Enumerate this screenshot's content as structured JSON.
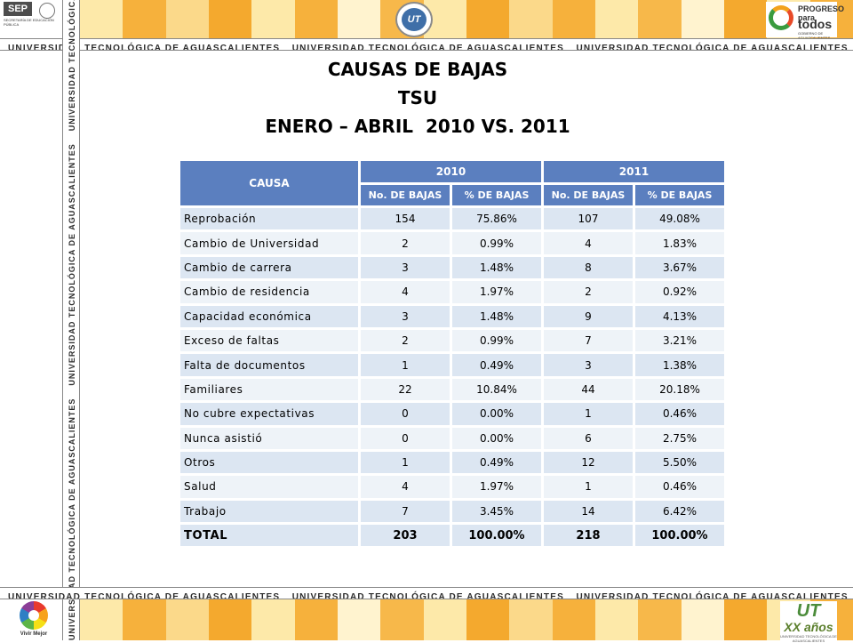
{
  "header": {
    "sep_logo": "SEP",
    "sep_subtitle": "SECRETARÍA DE EDUCACIÓN PÚBLICA",
    "university_banner": "UNIVERSIDAD TECNOLÓGICA DE AGUASCALIENTES",
    "seal_text": "UT",
    "progreso_line1": "PROGRESO para",
    "progreso_line2": "todos",
    "progreso_line3": "GOBIERNO DE AGUASCALIENTES"
  },
  "title": {
    "line1": "CAUSAS DE BAJAS",
    "line2": "TSU",
    "line3": "ENERO – ABRIL  2010 VS. 2011"
  },
  "table": {
    "cause_header": "CAUSA",
    "year_headers": [
      "2010",
      "2011"
    ],
    "sub_headers": [
      "No. DE BAJAS",
      "% DE BAJAS",
      "No. DE BAJAS",
      "% DE BAJAS"
    ],
    "rows": [
      {
        "cause": "Reprobación",
        "n2010": "154",
        "p2010": "75.86%",
        "n2011": "107",
        "p2011": "49.08%"
      },
      {
        "cause": "Cambio de Universidad",
        "n2010": "2",
        "p2010": "0.99%",
        "n2011": "4",
        "p2011": "1.83%"
      },
      {
        "cause": "Cambio de carrera",
        "n2010": "3",
        "p2010": "1.48%",
        "n2011": "8",
        "p2011": "3.67%"
      },
      {
        "cause": "Cambio de residencia",
        "n2010": "4",
        "p2010": "1.97%",
        "n2011": "2",
        "p2011": "0.92%"
      },
      {
        "cause": "Capacidad económica",
        "n2010": "3",
        "p2010": "1.48%",
        "n2011": "9",
        "p2011": "4.13%"
      },
      {
        "cause": "Exceso de faltas",
        "n2010": "2",
        "p2010": "0.99%",
        "n2011": "7",
        "p2011": "3.21%"
      },
      {
        "cause": "Falta de documentos",
        "n2010": "1",
        "p2010": "0.49%",
        "n2011": "3",
        "p2011": "1.38%"
      },
      {
        "cause": "Familiares",
        "n2010": "22",
        "p2010": "10.84%",
        "n2011": "44",
        "p2011": "20.18%"
      },
      {
        "cause": "No cubre expectativas",
        "n2010": "0",
        "p2010": "0.00%",
        "n2011": "1",
        "p2011": "0.46%"
      },
      {
        "cause": "Nunca asistió",
        "n2010": "0",
        "p2010": "0.00%",
        "n2011": "6",
        "p2011": "2.75%"
      },
      {
        "cause": "Otros",
        "n2010": "1",
        "p2010": "0.49%",
        "n2011": "12",
        "p2011": "5.50%"
      },
      {
        "cause": "Salud",
        "n2010": "4",
        "p2010": "1.97%",
        "n2011": "1",
        "p2011": "0.46%"
      },
      {
        "cause": "Trabajo",
        "n2010": "7",
        "p2010": "3.45%",
        "n2011": "14",
        "p2011": "6.42%"
      }
    ],
    "total": {
      "cause": "TOTAL",
      "n2010": "203",
      "p2010": "100.00%",
      "n2011": "218",
      "p2011": "100.00%"
    }
  },
  "footer": {
    "vivir_logo_text": "Vivir Mejor",
    "ut_mark": "UT",
    "anniversary_text": "XX años",
    "anniversary_sub": "UNIVERSIDAD TECNOLÓGICA DE AGUASCALIENTES"
  },
  "colors": {
    "header_blue": "#5b7fbf",
    "row_light": "#dce6f2",
    "row_lighter": "#eef3f8",
    "stripe_orange": "#f6b13c",
    "stripe_yellow": "#fde9a9"
  }
}
